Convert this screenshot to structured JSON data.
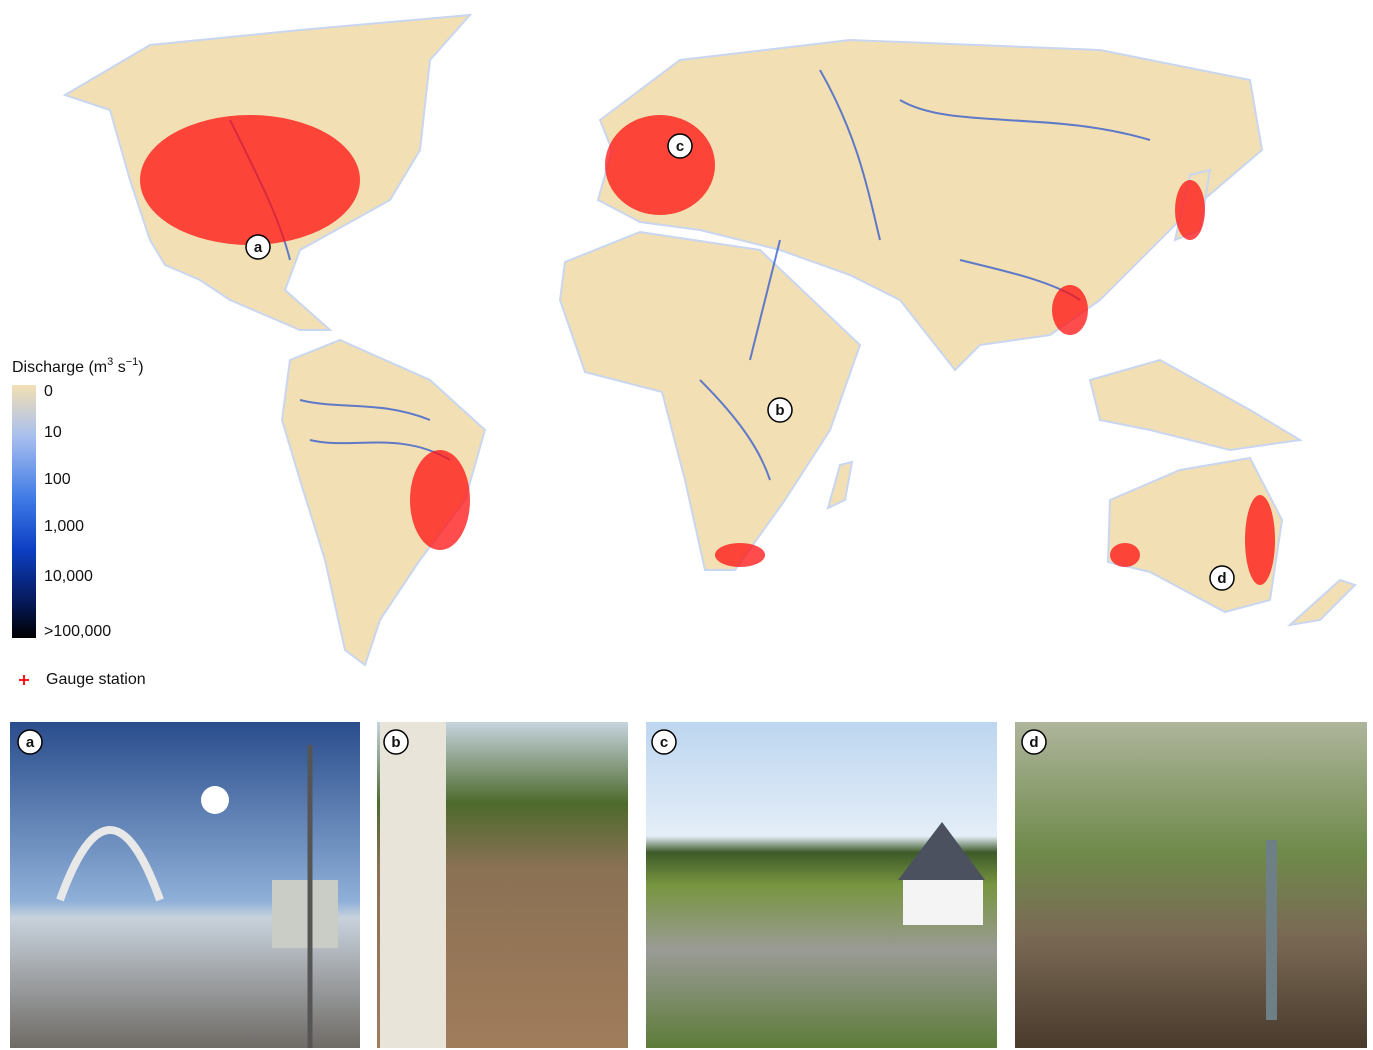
{
  "legend": {
    "title": [
      "Discharge (m",
      "3",
      " s",
      "−1",
      ")"
    ],
    "labels": [
      "0",
      "10",
      "100",
      "1,000",
      "10,000",
      ">100,000"
    ],
    "gauge_label": "Gauge station"
  },
  "markers": [
    "a",
    "b",
    "c",
    "d"
  ],
  "photos": [
    {
      "label": "a"
    },
    {
      "label": "b"
    },
    {
      "label": "c"
    },
    {
      "label": "d"
    }
  ]
}
